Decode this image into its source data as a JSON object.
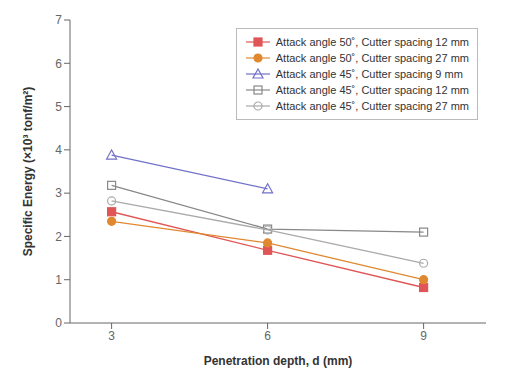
{
  "chart_data": {
    "type": "line",
    "x": [
      3,
      6,
      9
    ],
    "series": [
      {
        "name": "Attack angle 50˚, Cutter spacing 12 mm",
        "color": "#e05555",
        "marker": "square",
        "values": [
          2.57,
          1.68,
          0.82
        ]
      },
      {
        "name": "Attack angle 50˚, Cutter spacing 27 mm",
        "color": "#e08830",
        "marker": "circle",
        "values": [
          2.35,
          1.85,
          1.0
        ]
      },
      {
        "name": "Attack angle 45˚, Cutter spacing 9 mm",
        "color": "#7070c8",
        "marker": "triangle-open",
        "values": [
          3.88,
          3.1,
          null
        ]
      },
      {
        "name": "Attack angle 45˚, Cutter spacing 12 mm",
        "color": "#888888",
        "marker": "square-open",
        "values": [
          3.18,
          2.17,
          2.1
        ]
      },
      {
        "name": "Attack angle 45˚, Cutter spacing 27 mm",
        "color": "#aaaaaa",
        "marker": "circle-open",
        "values": [
          2.82,
          2.15,
          1.38
        ]
      }
    ],
    "xlabel": "Penetration depth, d (mm)",
    "ylabel": "Specific Energy (×10³ tonf/m²)",
    "xlim": [
      2.2,
      10.2
    ],
    "ylim": [
      0,
      7
    ],
    "xticks": [
      3,
      6,
      9
    ],
    "yticks": [
      0,
      1,
      2,
      3,
      4,
      5,
      6,
      7
    ],
    "grid": false,
    "legend": "upper right"
  }
}
